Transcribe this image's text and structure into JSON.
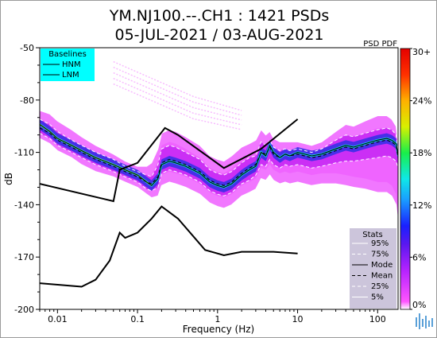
{
  "header": {
    "title_line1": "YM.NJ100.--.CH1 : 1421 PSDs",
    "title_line2": "05-JUL-2021 / 03-AUG-2021",
    "pdf_label": "PSD PDF"
  },
  "chart_data": {
    "type": "line",
    "xlabel": "Frequency (Hz)",
    "ylabel": "dB",
    "xscale": "log",
    "xlim": [
      0.006,
      180
    ],
    "ylim": [
      -200,
      -50
    ],
    "grid": false,
    "x_ticks": [
      {
        "value": 0.01,
        "label": "0.01"
      },
      {
        "value": 0.1,
        "label": "0.1"
      },
      {
        "value": 1,
        "label": "1"
      },
      {
        "value": 10,
        "label": "10"
      },
      {
        "value": 100,
        "label": "100"
      }
    ],
    "y_ticks": [
      {
        "value": -50,
        "label": "-50"
      },
      {
        "value": -80,
        "label": "-80"
      },
      {
        "value": -110,
        "label": "-110"
      },
      {
        "value": -140,
        "label": "-140"
      },
      {
        "value": -170,
        "label": "-170"
      },
      {
        "value": -200,
        "label": "-200"
      }
    ],
    "baselines": {
      "title": "Baselines",
      "items": [
        "HNM",
        "LNM"
      ],
      "legend_position": "top-left",
      "hnm": {
        "x": [
          0.006,
          0.05,
          0.06,
          0.1,
          0.22,
          0.32,
          1.2,
          3.5,
          10
        ],
        "y": [
          -128,
          -138,
          -120,
          -116,
          -96,
          -100,
          -119,
          -108,
          -91
        ]
      },
      "lnm": {
        "x": [
          0.006,
          0.02,
          0.03,
          0.045,
          0.06,
          0.07,
          0.1,
          0.15,
          0.2,
          0.32,
          0.7,
          1.2,
          2,
          5,
          10
        ],
        "y": [
          -185,
          -187,
          -183,
          -172,
          -156,
          -159,
          -156,
          -148,
          -141,
          -148,
          -166,
          -169,
          -167,
          -167,
          -168
        ]
      }
    },
    "stats": {
      "title": "Stats",
      "items": [
        "95%",
        "75%",
        "Mode",
        "Mean",
        "25%",
        "5%"
      ],
      "legend_position": "bottom-right",
      "x": [
        0.006,
        0.008,
        0.01,
        0.015,
        0.02,
        0.03,
        0.05,
        0.07,
        0.1,
        0.13,
        0.15,
        0.18,
        0.2,
        0.25,
        0.3,
        0.4,
        0.6,
        0.8,
        1,
        1.2,
        1.5,
        2,
        2.5,
        3,
        3.5,
        4,
        4.5,
        5,
        6,
        7,
        8,
        10,
        15,
        20,
        30,
        40,
        50,
        70,
        100,
        130,
        150,
        170,
        180
      ],
      "mode": [
        -94,
        -98,
        -102,
        -106,
        -109,
        -113,
        -117,
        -120,
        -123,
        -127,
        -129,
        -125,
        -117,
        -115,
        -116,
        -118,
        -122,
        -127,
        -129,
        -130,
        -128,
        -123,
        -120,
        -118,
        -110,
        -112,
        -106,
        -110,
        -113,
        -111,
        -112,
        -110,
        -112,
        -111,
        -108,
        -106,
        -107,
        -105,
        -103,
        -102,
        -103,
        -105,
        -112
      ],
      "mean": [
        -96,
        -99,
        -103,
        -107,
        -110,
        -114,
        -118,
        -121,
        -124,
        -127,
        -128,
        -124,
        -116,
        -114,
        -115,
        -117,
        -121,
        -126,
        -128,
        -129,
        -127,
        -122,
        -119,
        -117,
        -110,
        -111,
        -107,
        -111,
        -113,
        -111,
        -112,
        -111,
        -113,
        -112,
        -109,
        -107,
        -108,
        -106,
        -104,
        -103,
        -104,
        -106,
        -113
      ],
      "p95": [
        -86,
        -88,
        -92,
        -97,
        -101,
        -106,
        -111,
        -115,
        -118,
        -118,
        -116,
        -108,
        -99,
        -97,
        -98,
        -101,
        -106,
        -112,
        -114,
        -115,
        -112,
        -107,
        -105,
        -103,
        -97,
        -100,
        -98,
        -102,
        -104,
        -104,
        -104,
        -104,
        -106,
        -104,
        -98,
        -94,
        -95,
        -92,
        -89,
        -89,
        -91,
        -95,
        -105
      ],
      "p75": [
        -91,
        -94,
        -98,
        -103,
        -106,
        -110,
        -114,
        -118,
        -121,
        -123,
        -124,
        -117,
        -108,
        -106,
        -107,
        -110,
        -114,
        -120,
        -122,
        -123,
        -121,
        -116,
        -113,
        -112,
        -104,
        -106,
        -103,
        -107,
        -109,
        -108,
        -109,
        -108,
        -110,
        -108,
        -103,
        -100,
        -101,
        -99,
        -97,
        -96,
        -97,
        -100,
        -109
      ],
      "p25": [
        -99,
        -102,
        -106,
        -110,
        -113,
        -117,
        -121,
        -124,
        -127,
        -131,
        -132,
        -130,
        -122,
        -120,
        -121,
        -123,
        -127,
        -132,
        -134,
        -135,
        -133,
        -128,
        -126,
        -123,
        -117,
        -118,
        -114,
        -117,
        -119,
        -117,
        -118,
        -117,
        -119,
        -118,
        -116,
        -115,
        -115,
        -114,
        -113,
        -112,
        -113,
        -115,
        -119
      ],
      "p5": [
        -102,
        -105,
        -109,
        -113,
        -117,
        -121,
        -124,
        -127,
        -130,
        -134,
        -136,
        -135,
        -129,
        -127,
        -128,
        -130,
        -134,
        -139,
        -141,
        -142,
        -140,
        -135,
        -133,
        -131,
        -125,
        -126,
        -123,
        -126,
        -128,
        -127,
        -128,
        -127,
        -129,
        -128,
        -128,
        -129,
        -130,
        -131,
        -133,
        -133,
        -135,
        -140,
        -150
      ]
    },
    "colorbar": {
      "colors": [
        "#ffffff",
        "#ff44ff",
        "#9e1bff",
        "#3018e6",
        "#1880ff",
        "#0fe5e5",
        "#19ef4a",
        "#d7f000",
        "#ffb000",
        "#ff2a00",
        "#e60000"
      ],
      "ticks": [
        {
          "value": 0,
          "label": "0%"
        },
        {
          "value": 6,
          "label": "6%"
        },
        {
          "value": 12,
          "label": "12%"
        },
        {
          "value": 18,
          "label": "18%"
        },
        {
          "value": 24,
          "label": "24%"
        },
        {
          "value": 30,
          "label": "30+"
        }
      ],
      "min": 0,
      "max": 30
    },
    "colors": {
      "legend_baselines_bg": "#00ffff",
      "legend_stats_bg": "#c8c0d8",
      "cloud_outer": "#ee55ff",
      "cloud_inner": "#c82cf4",
      "core": "#3830e8"
    }
  }
}
